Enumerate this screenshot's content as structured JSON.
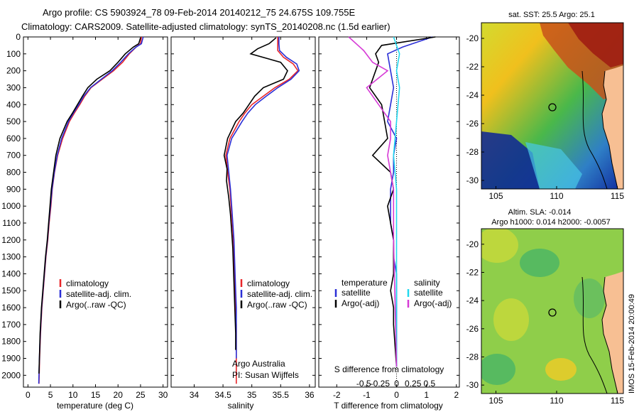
{
  "title_line1": "Argo profile: CS 5903924_78 09-Feb-2014 20140212_75 24.675S 109.755E",
  "title_line2": "Climatology: CARS2009. Satellite-adjusted climatology: synTS_20140208.nc (1.5d earlier)",
  "side_label": "IMOS 15-Feb-2014 20:00:49",
  "colors": {
    "climatology": "#e8262a",
    "satellite": "#2b2fd6",
    "argo": "#000000",
    "s_satellite": "#22d8ee",
    "s_argo": "#d63bd6",
    "land": "#f7bf93"
  },
  "chart_data": [
    {
      "type": "line",
      "id": "temperature",
      "xlabel": "temperature (deg C)",
      "ylim": [
        2070,
        0
      ],
      "xlim": [
        -1,
        31
      ],
      "yticks": [
        0,
        100,
        200,
        300,
        400,
        500,
        600,
        700,
        800,
        900,
        1000,
        1100,
        1200,
        1300,
        1400,
        1500,
        1600,
        1700,
        1800,
        1900,
        2000
      ],
      "xticks": [
        0,
        5,
        10,
        15,
        20,
        25,
        30
      ],
      "legend": [
        "climatology",
        "satellite-adj. clim.",
        "Argo(..raw -QC)"
      ],
      "series": [
        {
          "name": "climatology",
          "color_key": "climatology",
          "x": [
            25.2,
            25.0,
            24.0,
            22.5,
            21.0,
            19.0,
            16.5,
            14.0,
            12.6,
            11.5,
            10.3,
            9.2,
            7.7,
            6.6,
            5.9,
            5.4,
            5.1,
            4.7,
            4.4,
            4.0,
            3.7,
            3.4,
            3.1,
            2.8,
            2.6,
            2.45
          ],
          "y": [
            0,
            40,
            60,
            100,
            150,
            200,
            250,
            300,
            350,
            400,
            450,
            500,
            600,
            700,
            800,
            900,
            1000,
            1100,
            1200,
            1300,
            1400,
            1500,
            1600,
            1750,
            1900,
            2050
          ]
        },
        {
          "name": "satellite-adj. clim.",
          "color_key": "satellite",
          "x": [
            25.6,
            25.2,
            24.0,
            22.3,
            20.6,
            18.7,
            16.3,
            13.9,
            12.4,
            11.3,
            10.1,
            9.0,
            7.5,
            6.5,
            5.85,
            5.35,
            5.0,
            4.65,
            4.35,
            3.95,
            3.65,
            3.35,
            3.05,
            2.75,
            2.55,
            2.4
          ],
          "y": [
            0,
            40,
            60,
            100,
            150,
            200,
            250,
            300,
            350,
            400,
            450,
            500,
            600,
            700,
            800,
            900,
            1000,
            1100,
            1200,
            1300,
            1400,
            1500,
            1600,
            1750,
            1900,
            2050
          ]
        },
        {
          "name": "Argo(..raw -QC)",
          "color_key": "argo",
          "x": [
            25.0,
            24.6,
            23.4,
            21.6,
            20.0,
            18.2,
            15.3,
            13.3,
            12.1,
            11.0,
            9.9,
            8.7,
            7.1,
            6.2,
            5.7,
            5.2,
            4.9,
            4.6,
            4.3,
            3.9,
            3.6,
            3.3,
            3.0,
            2.7,
            2.55,
            2.45
          ],
          "y": [
            5,
            40,
            60,
            100,
            150,
            200,
            250,
            300,
            350,
            400,
            450,
            500,
            600,
            700,
            800,
            900,
            1000,
            1100,
            1200,
            1300,
            1400,
            1500,
            1600,
            1750,
            1900,
            1990
          ]
        }
      ]
    },
    {
      "type": "line",
      "id": "salinity",
      "xlabel": "salinity",
      "ylim": [
        2070,
        0
      ],
      "xlim": [
        33.6,
        36.1
      ],
      "xticks": [
        34,
        34.5,
        35,
        35.5,
        36
      ],
      "legend": [
        "climatology",
        "satellite-adj. clim.",
        "Argo(..raw -QC)"
      ],
      "annotation_line1": "Argo Australia",
      "annotation_line2": "PI: Susan Wijffels",
      "series": [
        {
          "name": "climatology",
          "color_key": "climatology",
          "x": [
            35.45,
            35.45,
            35.45,
            35.55,
            35.72,
            35.8,
            35.65,
            35.4,
            35.2,
            35.0,
            34.88,
            34.78,
            34.62,
            34.55,
            34.58,
            34.62,
            34.64,
            34.66,
            34.68,
            34.69,
            34.7,
            34.71,
            34.72,
            34.73,
            34.73,
            34.73
          ],
          "y": [
            0,
            40,
            80,
            120,
            160,
            200,
            250,
            300,
            350,
            400,
            450,
            500,
            600,
            700,
            800,
            900,
            1000,
            1100,
            1200,
            1300,
            1400,
            1500,
            1600,
            1700,
            1850,
            2050
          ]
        },
        {
          "name": "satellite-adj. clim.",
          "color_key": "satellite",
          "x": [
            35.47,
            35.47,
            35.48,
            35.6,
            35.78,
            35.82,
            35.68,
            35.45,
            35.25,
            35.06,
            34.93,
            34.83,
            34.65,
            34.57,
            34.6,
            34.63,
            34.65,
            34.67,
            34.69,
            34.7,
            34.71,
            34.72,
            34.73,
            34.73,
            34.73
          ],
          "y": [
            0,
            40,
            80,
            120,
            160,
            200,
            250,
            300,
            350,
            400,
            450,
            500,
            600,
            700,
            800,
            900,
            1000,
            1100,
            1200,
            1300,
            1400,
            1500,
            1600,
            1750,
            1900
          ]
        },
        {
          "name": "Argo(..raw -QC)",
          "color_key": "argo",
          "x": [
            35.42,
            35.3,
            35.1,
            34.98,
            35.5,
            35.62,
            35.55,
            35.2,
            35.05,
            34.95,
            34.85,
            34.72,
            34.58,
            34.52,
            34.57,
            34.56,
            34.6,
            34.63,
            34.65,
            34.67,
            34.68,
            34.69,
            34.7,
            34.71,
            34.72,
            34.72
          ],
          "y": [
            5,
            40,
            70,
            100,
            150,
            200,
            250,
            300,
            350,
            400,
            450,
            500,
            600,
            700,
            780,
            850,
            950,
            1050,
            1150,
            1250,
            1350,
            1450,
            1550,
            1650,
            1750,
            1850
          ]
        }
      ]
    },
    {
      "type": "line",
      "id": "difference",
      "xlabel": "T difference from climatology",
      "top_label": "S difference from climatology",
      "ylim": [
        2070,
        0
      ],
      "xlim": [
        -2.6,
        2.1
      ],
      "xticks": [
        -2,
        -1,
        0,
        1,
        2
      ],
      "top_ticks": [
        "-0.5",
        "-0.25",
        "0",
        "0.25",
        "0.5"
      ],
      "legend_headers": [
        "temperature",
        "salinity"
      ],
      "legend": [
        "satellite",
        "Argo(-adj)",
        "satellite",
        "Argo(-adj)"
      ],
      "series": [
        {
          "name": "T satellite",
          "color_key": "satellite",
          "x": [
            1.2,
            0.2,
            -0.3,
            -0.2,
            -0.1,
            -0.2,
            -0.3,
            0.0,
            -0.1,
            -0.1,
            -0.2,
            -0.2,
            -0.2,
            -0.1,
            -0.1,
            0.0,
            0.0,
            0.0,
            0.0,
            0.0
          ],
          "y": [
            0,
            60,
            100,
            200,
            300,
            400,
            500,
            600,
            700,
            800,
            900,
            1000,
            1100,
            1200,
            1300,
            1400,
            1600,
            1700,
            1800,
            1950
          ]
        },
        {
          "name": "T Argo(-adj)",
          "color_key": "argo",
          "x": [
            1.3,
            -0.5,
            -0.7,
            -0.6,
            -0.9,
            -0.5,
            -0.4,
            -0.3,
            -0.8,
            -0.2,
            -0.1,
            -0.3,
            -0.2,
            -0.1,
            -0.1,
            -0.1,
            -0.2,
            -0.1,
            -0.1,
            0.0
          ],
          "y": [
            0,
            50,
            100,
            150,
            300,
            400,
            500,
            600,
            700,
            800,
            900,
            1000,
            1100,
            1200,
            1300,
            1400,
            1500,
            1600,
            1700,
            1950
          ]
        },
        {
          "name": "S satellite",
          "color_key": "s_satellite",
          "x": [
            -0.1,
            0.1,
            0.0,
            0.1,
            0.0,
            -0.1,
            0.0,
            0.0,
            0.0,
            0.0,
            0.0
          ],
          "y": [
            0,
            100,
            200,
            300,
            500,
            700,
            900,
            1100,
            1300,
            1600,
            1950
          ]
        },
        {
          "name": "S Argo(-adj)",
          "color_key": "s_argo",
          "x": [
            -1.6,
            -1.1,
            -0.8,
            -0.3,
            -1.0,
            -0.6,
            -0.2,
            -0.2,
            -0.3,
            -0.2,
            -0.1,
            -0.1,
            -0.1,
            0.0
          ],
          "y": [
            0,
            80,
            150,
            200,
            300,
            400,
            500,
            600,
            700,
            800,
            900,
            1000,
            1200,
            1950
          ]
        }
      ]
    },
    {
      "type": "heatmap",
      "id": "sst_map",
      "title": "sat. SST: 25.5  Argo: 25.1",
      "xticks": [
        105,
        110,
        115
      ],
      "yticks": [
        -20,
        -22,
        -24,
        -26,
        -28,
        -30
      ],
      "marker": {
        "lon": 109.755,
        "lat": -24.675
      }
    },
    {
      "type": "heatmap",
      "id": "sla_map",
      "title_line1": "Altim. SLA: -0.014",
      "title_line2": "Argo h1000: 0.014 h2000: -0.0057",
      "xticks": [
        105,
        110,
        115
      ],
      "yticks": [
        -20,
        -22,
        -24,
        -26,
        -28,
        -30
      ],
      "marker": {
        "lon": 109.755,
        "lat": -24.675
      }
    }
  ]
}
